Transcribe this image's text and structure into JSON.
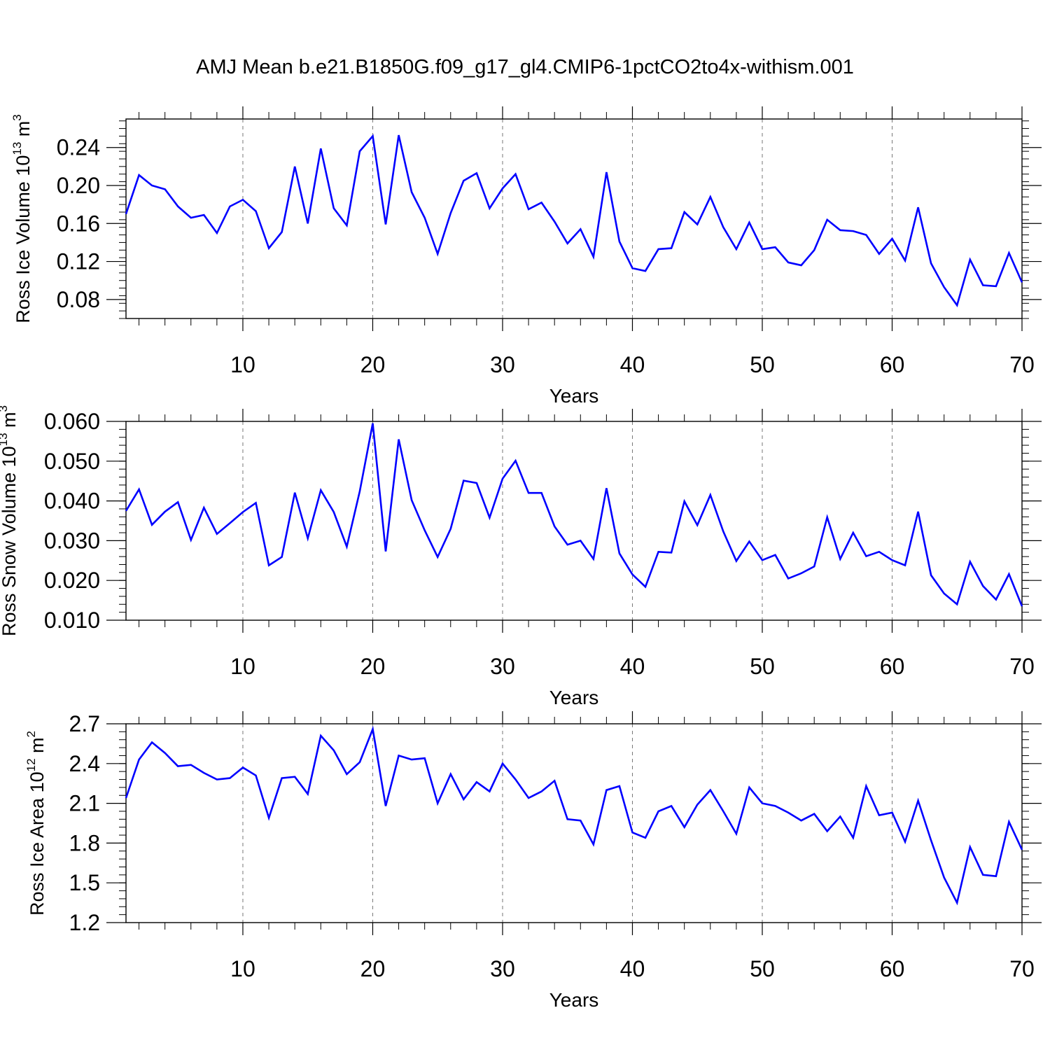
{
  "title": "AMJ Mean b.e21.B1850G.f09_g17_gl4.CMIP6-1pctCO2to4x-withism.001",
  "chart_data": [
    {
      "type": "line",
      "xlabel": "Years",
      "ylabel": "Ross Ice Volume 10",
      "ylabel_exp": "13",
      "ylabel_unit": "m",
      "ylabel_unit_exp": "3",
      "xlim": [
        1,
        70
      ],
      "ylim": [
        0.06,
        0.27
      ],
      "xticks": [
        10,
        20,
        30,
        40,
        50,
        60,
        70
      ],
      "yticks": [
        0.08,
        0.12,
        0.16,
        0.2,
        0.24
      ],
      "ytick_labels": [
        "0.08",
        "0.12",
        "0.16",
        "0.20",
        "0.24"
      ],
      "line_color": "#0000ff",
      "grid": "vertical dashed at major x ticks",
      "x": [
        1,
        2,
        3,
        4,
        5,
        6,
        7,
        8,
        9,
        10,
        11,
        12,
        13,
        14,
        15,
        16,
        17,
        18,
        19,
        20,
        21,
        22,
        23,
        24,
        25,
        26,
        27,
        28,
        29,
        30,
        31,
        32,
        33,
        34,
        35,
        36,
        37,
        38,
        39,
        40,
        41,
        42,
        43,
        44,
        45,
        46,
        47,
        48,
        49,
        50,
        51,
        52,
        53,
        54,
        55,
        56,
        57,
        58,
        59,
        60,
        61,
        62,
        63,
        64,
        65,
        66,
        67,
        68,
        69,
        70
      ],
      "values": [
        0.17,
        0.211,
        0.2,
        0.196,
        0.178,
        0.166,
        0.169,
        0.15,
        0.178,
        0.185,
        0.173,
        0.134,
        0.151,
        0.22,
        0.16,
        0.239,
        0.176,
        0.158,
        0.236,
        0.252,
        0.159,
        0.253,
        0.193,
        0.166,
        0.128,
        0.171,
        0.205,
        0.213,
        0.176,
        0.197,
        0.212,
        0.175,
        0.182,
        0.162,
        0.139,
        0.154,
        0.125,
        0.214,
        0.141,
        0.113,
        0.11,
        0.133,
        0.134,
        0.172,
        0.159,
        0.188,
        0.156,
        0.133,
        0.161,
        0.133,
        0.135,
        0.119,
        0.116,
        0.132,
        0.164,
        0.153,
        0.152,
        0.148,
        0.128,
        0.144,
        0.121,
        0.177,
        0.118,
        0.093,
        0.074,
        0.122,
        0.095,
        0.094,
        0.129,
        0.098
      ]
    },
    {
      "type": "line",
      "xlabel": "Years",
      "ylabel": "Ross Snow Volume 10",
      "ylabel_exp": "13",
      "ylabel_unit": "m",
      "ylabel_unit_exp": "3",
      "xlim": [
        1,
        70
      ],
      "ylim": [
        0.01,
        0.06
      ],
      "xticks": [
        10,
        20,
        30,
        40,
        50,
        60,
        70
      ],
      "yticks": [
        0.01,
        0.02,
        0.03,
        0.04,
        0.05,
        0.06
      ],
      "ytick_labels": [
        "0.010",
        "0.020",
        "0.030",
        "0.040",
        "0.050",
        "0.060"
      ],
      "line_color": "#0000ff",
      "grid": "vertical dashed at major x ticks",
      "x": [
        1,
        2,
        3,
        4,
        5,
        6,
        7,
        8,
        9,
        10,
        11,
        12,
        13,
        14,
        15,
        16,
        17,
        18,
        19,
        20,
        21,
        22,
        23,
        24,
        25,
        26,
        27,
        28,
        29,
        30,
        31,
        32,
        33,
        34,
        35,
        36,
        37,
        38,
        39,
        40,
        41,
        42,
        43,
        44,
        45,
        46,
        47,
        48,
        49,
        50,
        51,
        52,
        53,
        54,
        55,
        56,
        57,
        58,
        59,
        60,
        61,
        62,
        63,
        64,
        65,
        66,
        67,
        68,
        69,
        70
      ],
      "values": [
        0.0375,
        0.0429,
        0.034,
        0.0373,
        0.0397,
        0.0302,
        0.0383,
        0.0317,
        0.0344,
        0.0372,
        0.0395,
        0.0238,
        0.0259,
        0.0421,
        0.0306,
        0.0427,
        0.0372,
        0.0285,
        0.0424,
        0.0595,
        0.0273,
        0.0555,
        0.0402,
        0.0326,
        0.0259,
        0.033,
        0.0451,
        0.0445,
        0.0358,
        0.0456,
        0.0501,
        0.042,
        0.042,
        0.0336,
        0.029,
        0.03,
        0.0254,
        0.0432,
        0.0268,
        0.0215,
        0.0184,
        0.0272,
        0.027,
        0.0399,
        0.0339,
        0.0415,
        0.0323,
        0.0249,
        0.0298,
        0.0251,
        0.0264,
        0.0205,
        0.0218,
        0.0235,
        0.0359,
        0.0254,
        0.032,
        0.0261,
        0.0272,
        0.0251,
        0.0238,
        0.0373,
        0.0213,
        0.0167,
        0.014,
        0.0247,
        0.0186,
        0.0152,
        0.0216,
        0.0135
      ]
    },
    {
      "type": "line",
      "xlabel": "Years",
      "ylabel": "Ross Ice Area 10",
      "ylabel_exp": "12",
      "ylabel_unit": "m",
      "ylabel_unit_exp": "2",
      "xlim": [
        1,
        70
      ],
      "ylim": [
        1.2,
        2.7
      ],
      "xticks": [
        10,
        20,
        30,
        40,
        50,
        60,
        70
      ],
      "yticks": [
        1.2,
        1.5,
        1.8,
        2.1,
        2.4,
        2.7
      ],
      "ytick_labels": [
        "1.2",
        "1.5",
        "1.8",
        "2.1",
        "2.4",
        "2.7"
      ],
      "line_color": "#0000ff",
      "grid": "vertical dashed at major x ticks",
      "x": [
        1,
        2,
        3,
        4,
        5,
        6,
        7,
        8,
        9,
        10,
        11,
        12,
        13,
        14,
        15,
        16,
        17,
        18,
        19,
        20,
        21,
        22,
        23,
        24,
        25,
        26,
        27,
        28,
        29,
        30,
        31,
        32,
        33,
        34,
        35,
        36,
        37,
        38,
        39,
        40,
        41,
        42,
        43,
        44,
        45,
        46,
        47,
        48,
        49,
        50,
        51,
        52,
        53,
        54,
        55,
        56,
        57,
        58,
        59,
        60,
        61,
        62,
        63,
        64,
        65,
        66,
        67,
        68,
        69,
        70
      ],
      "values": [
        2.14,
        2.43,
        2.56,
        2.48,
        2.38,
        2.39,
        2.33,
        2.28,
        2.29,
        2.37,
        2.31,
        1.99,
        2.29,
        2.3,
        2.17,
        2.61,
        2.5,
        2.32,
        2.41,
        2.66,
        2.08,
        2.46,
        2.43,
        2.44,
        2.1,
        2.32,
        2.13,
        2.26,
        2.19,
        2.4,
        2.28,
        2.14,
        2.19,
        2.27,
        1.98,
        1.97,
        1.79,
        2.2,
        2.23,
        1.88,
        1.84,
        2.04,
        2.08,
        1.92,
        2.09,
        2.2,
        2.04,
        1.87,
        2.22,
        2.1,
        2.08,
        2.03,
        1.97,
        2.02,
        1.89,
        2.0,
        1.84,
        2.23,
        2.01,
        2.03,
        1.81,
        2.12,
        1.82,
        1.54,
        1.35,
        1.77,
        1.56,
        1.55,
        1.96,
        1.75
      ]
    }
  ]
}
